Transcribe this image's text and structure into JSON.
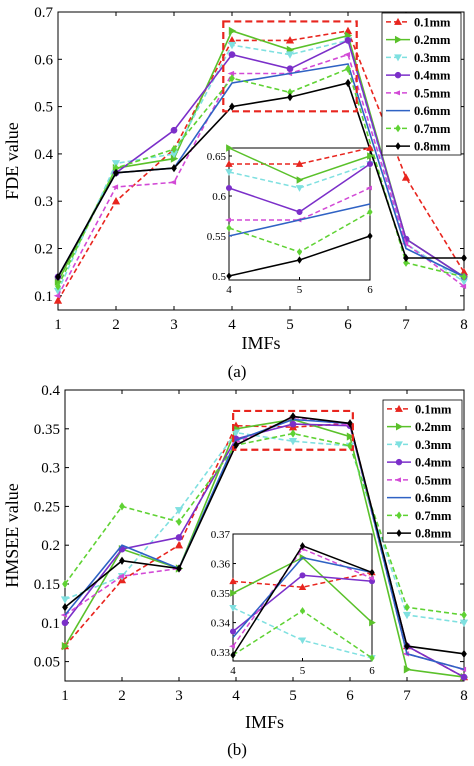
{
  "caption_a": "(a)",
  "caption_b": "(b)",
  "chart_data": [
    {
      "type": "line",
      "xlabel": "IMFs",
      "ylabel": "FDE value",
      "xlim": [
        1,
        8
      ],
      "ylim": [
        0.07,
        0.7
      ],
      "x": [
        1,
        2,
        3,
        4,
        5,
        6,
        7,
        8
      ],
      "xticks": [
        "1",
        "2",
        "3",
        "4",
        "5",
        "6",
        "7",
        "8"
      ],
      "yticks": [
        "0.1",
        "0.2",
        "0.3",
        "0.4",
        "0.5",
        "0.6",
        "0.7"
      ],
      "ytick_values": [
        0.1,
        0.2,
        0.3,
        0.4,
        0.5,
        0.6,
        0.7
      ],
      "legend_position": "top-right",
      "series": [
        {
          "name": "0.1mm",
          "color": "#e8251e",
          "dash": "dashed",
          "marker": "triangle",
          "values": [
            0.09,
            0.3,
            0.41,
            0.64,
            0.64,
            0.66,
            0.35,
            0.15
          ]
        },
        {
          "name": "0.2mm",
          "color": "#5ac12a",
          "dash": "solid",
          "marker": "triangle-right",
          "values": [
            0.13,
            0.37,
            0.39,
            0.66,
            0.62,
            0.65,
            0.22,
            0.14
          ]
        },
        {
          "name": "0.3mm",
          "color": "#7fe0e0",
          "dash": "dashed",
          "marker": "triangle-down",
          "values": [
            0.11,
            0.38,
            0.4,
            0.63,
            0.61,
            0.64,
            0.21,
            0.13
          ]
        },
        {
          "name": "0.4mm",
          "color": "#7b2fc9",
          "dash": "solid",
          "marker": "circle",
          "values": [
            0.14,
            0.36,
            0.45,
            0.61,
            0.58,
            0.64,
            0.22,
            0.14
          ]
        },
        {
          "name": "0.5mm",
          "color": "#d24ad6",
          "dash": "dashed",
          "marker": "diamond-left",
          "values": [
            0.1,
            0.33,
            0.34,
            0.57,
            0.57,
            0.61,
            0.21,
            0.12
          ]
        },
        {
          "name": "0.6mm",
          "color": "#2f62c4",
          "dash": "solid",
          "marker": "none",
          "values": [
            0.14,
            0.36,
            0.37,
            0.55,
            0.57,
            0.59,
            0.2,
            0.14
          ]
        },
        {
          "name": "0.7mm",
          "color": "#5fd233",
          "dash": "dashed",
          "marker": "diamond",
          "values": [
            0.12,
            0.37,
            0.41,
            0.56,
            0.53,
            0.58,
            0.17,
            0.14
          ]
        },
        {
          "name": "0.8mm",
          "color": "#000000",
          "dash": "solid",
          "marker": "diamond",
          "values": [
            0.14,
            0.36,
            0.37,
            0.5,
            0.52,
            0.55,
            0.18,
            0.18
          ]
        }
      ],
      "highlight_box": {
        "xlim": [
          3.85,
          6.15
        ],
        "ylim": [
          0.49,
          0.68
        ],
        "color": "#e8251e"
      },
      "inset": {
        "xlim": [
          4,
          6
        ],
        "ylim": [
          0.495,
          0.66
        ],
        "xticks": [
          "4",
          "5",
          "6"
        ],
        "yticks": [
          "0.5",
          "0.55",
          "0.6",
          "0.65"
        ],
        "ytick_values": [
          0.5,
          0.55,
          0.6,
          0.65
        ],
        "x_indices": [
          3,
          4,
          5
        ]
      }
    },
    {
      "type": "line",
      "xlabel": "IMFs",
      "ylabel": "HMSEE value",
      "xlim": [
        1,
        8
      ],
      "ylim": [
        0.025,
        0.4
      ],
      "x": [
        1,
        2,
        3,
        4,
        5,
        6,
        7,
        8
      ],
      "xticks": [
        "1",
        "2",
        "3",
        "4",
        "5",
        "6",
        "7",
        "8"
      ],
      "yticks": [
        "0.05",
        "0.1",
        "0.15",
        "0.2",
        "0.25",
        "0.3",
        "0.35",
        "0.4"
      ],
      "ytick_values": [
        0.05,
        0.1,
        0.15,
        0.2,
        0.25,
        0.3,
        0.35,
        0.4
      ],
      "legend_position": "top-right",
      "series": [
        {
          "name": "0.1mm",
          "color": "#e8251e",
          "dash": "dashed",
          "marker": "triangle",
          "values": [
            0.07,
            0.155,
            0.2,
            0.354,
            0.352,
            0.357,
            0.07,
            0.03
          ]
        },
        {
          "name": "0.2mm",
          "color": "#5ac12a",
          "dash": "solid",
          "marker": "triangle-right",
          "values": [
            0.07,
            0.195,
            0.17,
            0.35,
            0.362,
            0.34,
            0.04,
            0.03
          ]
        },
        {
          "name": "0.3mm",
          "color": "#7fe0e0",
          "dash": "dashed",
          "marker": "triangle-down",
          "values": [
            0.13,
            0.16,
            0.245,
            0.345,
            0.334,
            0.328,
            0.11,
            0.1
          ]
        },
        {
          "name": "0.4mm",
          "color": "#7b2fc9",
          "dash": "solid",
          "marker": "circle",
          "values": [
            0.1,
            0.195,
            0.21,
            0.337,
            0.356,
            0.354,
            0.07,
            0.03
          ]
        },
        {
          "name": "0.5mm",
          "color": "#d24ad6",
          "dash": "dashed",
          "marker": "diamond-left",
          "values": [
            0.11,
            0.16,
            0.17,
            0.332,
            0.365,
            0.355,
            0.06,
            0.04
          ]
        },
        {
          "name": "0.6mm",
          "color": "#2f62c4",
          "dash": "solid",
          "marker": "none",
          "values": [
            0.11,
            0.2,
            0.17,
            0.335,
            0.362,
            0.357,
            0.06,
            0.04
          ]
        },
        {
          "name": "0.7mm",
          "color": "#5fd233",
          "dash": "dashed",
          "marker": "diamond",
          "values": [
            0.15,
            0.25,
            0.23,
            0.329,
            0.344,
            0.328,
            0.12,
            0.11
          ]
        },
        {
          "name": "0.8mm",
          "color": "#000000",
          "dash": "solid",
          "marker": "diamond",
          "values": [
            0.12,
            0.18,
            0.17,
            0.329,
            0.366,
            0.357,
            0.07,
            0.06
          ]
        }
      ],
      "highlight_box": {
        "xlim": [
          3.95,
          6.05
        ],
        "ylim": [
          0.323,
          0.373
        ],
        "color": "#e8251e"
      },
      "inset": {
        "xlim": [
          4,
          6
        ],
        "ylim": [
          0.327,
          0.37
        ],
        "xticks": [
          "4",
          "5",
          "6"
        ],
        "yticks": [
          "0.33",
          "0.34",
          "0.35",
          "0.36",
          "0.37"
        ],
        "ytick_values": [
          0.33,
          0.34,
          0.35,
          0.36,
          0.37
        ],
        "x_indices": [
          3,
          4,
          5
        ]
      }
    }
  ]
}
